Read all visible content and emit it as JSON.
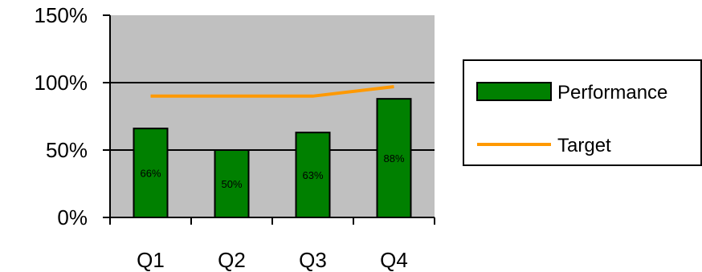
{
  "chart_data": {
    "type": "bar",
    "categories": [
      "Q1",
      "Q2",
      "Q3",
      "Q4"
    ],
    "series": [
      {
        "name": "Performance",
        "type": "bar",
        "values": [
          66,
          50,
          63,
          88
        ],
        "data_labels": [
          "66%",
          "50%",
          "63%",
          "88%"
        ]
      },
      {
        "name": "Target",
        "type": "line",
        "values": [
          90,
          90,
          90,
          97
        ]
      }
    ],
    "title": "",
    "xlabel": "",
    "ylabel": "",
    "ylim": [
      0,
      150
    ],
    "yticks": [
      0,
      50,
      100,
      150
    ],
    "ytick_labels": [
      "0%",
      "50%",
      "100%",
      "150%"
    ],
    "grid": true,
    "legend_position": "right",
    "colors": {
      "plot_background": "#c0c0c0",
      "bar_fill": "#008000",
      "line": "#ff9900",
      "gridline": "#000000"
    }
  }
}
